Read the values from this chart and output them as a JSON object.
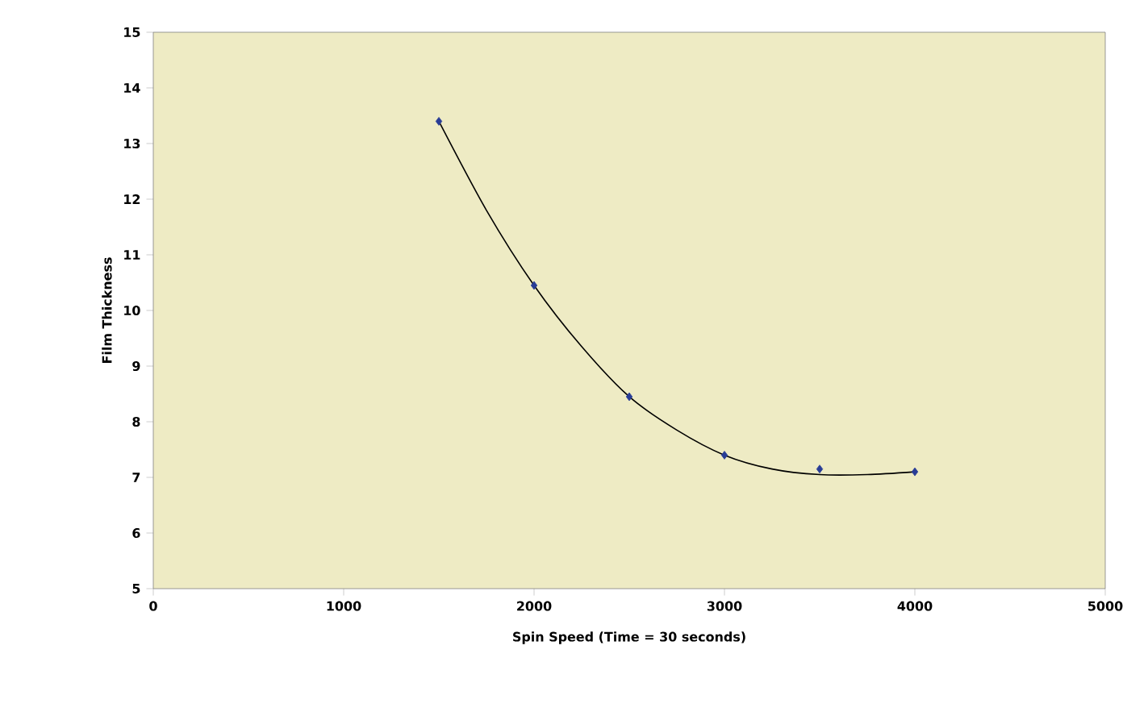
{
  "chart_data": {
    "type": "scatter",
    "xlabel": "Spin Speed (Time = 30 seconds)",
    "ylabel": "Film Thickness",
    "xlim": [
      0,
      5000
    ],
    "ylim": [
      5,
      15
    ],
    "xticks": [
      0,
      1000,
      2000,
      3000,
      4000,
      5000
    ],
    "yticks": [
      5,
      6,
      7,
      8,
      9,
      10,
      11,
      12,
      13,
      14,
      15
    ],
    "grid": false,
    "series": [
      {
        "type": "line",
        "color": "#000000",
        "marker": "none",
        "x": [
          1500,
          1750,
          2000,
          2250,
          2500,
          2750,
          3000,
          3250,
          3500,
          3750,
          4000
        ],
        "values": [
          13.4,
          11.8,
          10.45,
          9.35,
          8.45,
          7.85,
          7.4,
          7.15,
          7.05,
          7.05,
          7.1
        ]
      },
      {
        "color": "#283c96",
        "marker": "diamond",
        "x": [
          1500,
          2000,
          2500,
          3000,
          3500,
          4000
        ],
        "values": [
          13.4,
          10.45,
          8.45,
          7.4,
          7.15,
          7.1
        ]
      }
    ]
  }
}
